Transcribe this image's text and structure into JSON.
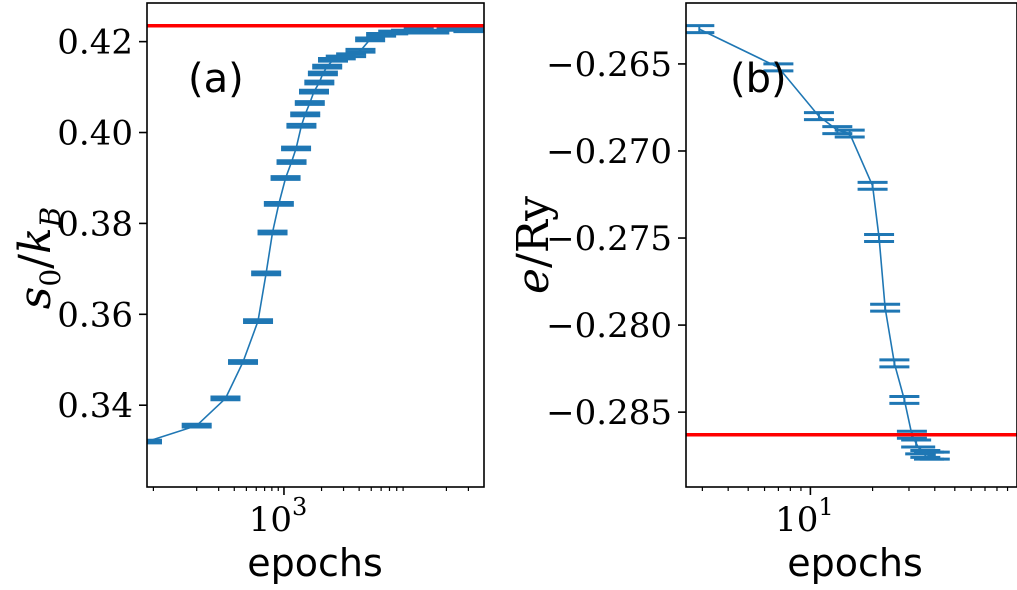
{
  "figure": {
    "series_color": "#1f77b4",
    "reference_color": "#ff0000"
  },
  "chart_data": [
    {
      "type": "line",
      "panel_label": "(a)",
      "title": "",
      "xlabel": "epochs",
      "ylabel_text": "s0/kB",
      "xscale": "log",
      "xlim": [
        80,
        40000
      ],
      "ylim": [
        0.322,
        0.4285
      ],
      "x_ticks": [
        {
          "value": 1000,
          "base": "10",
          "exp": "3"
        }
      ],
      "y_ticks": [
        {
          "value": 0.34,
          "label": "0.34"
        },
        {
          "value": 0.36,
          "label": "0.36"
        },
        {
          "value": 0.38,
          "label": "0.38"
        },
        {
          "value": 0.4,
          "label": "0.40"
        },
        {
          "value": 0.42,
          "label": "0.42"
        }
      ],
      "reference_line": 0.4235,
      "series": [
        {
          "x": [
            80,
            200,
            340,
            470,
            620,
            720,
            810,
            910,
            1030,
            1150,
            1250,
            1380,
            1480,
            1610,
            1740,
            1920,
            2050,
            2220,
            2470,
            2850,
            3450,
            4100,
            4900,
            6000,
            7500,
            9500,
            12000,
            16000,
            22000,
            30000,
            40000
          ],
          "y": [
            0.332,
            0.3355,
            0.3415,
            0.3495,
            0.3585,
            0.369,
            0.378,
            0.3843,
            0.39,
            0.3935,
            0.3965,
            0.4015,
            0.404,
            0.4065,
            0.409,
            0.411,
            0.413,
            0.4145,
            0.416,
            0.4165,
            0.417,
            0.418,
            0.4205,
            0.4215,
            0.422,
            0.4222,
            0.4225,
            0.4222,
            0.4228,
            0.4225,
            0.4228
          ],
          "err": [
            0.0003,
            0.0003,
            0.0003,
            0.0003,
            0.0003,
            0.0003,
            0.0003,
            0.0003,
            0.0003,
            0.0003,
            0.0003,
            0.0003,
            0.0003,
            0.0003,
            0.0003,
            0.0003,
            0.0003,
            0.0003,
            0.0003,
            0.0003,
            0.0003,
            0.0003,
            0.0003,
            0.0003,
            0.0003,
            0.0003,
            0.0003,
            0.0003,
            0.0003,
            0.0003,
            0.0003
          ]
        }
      ]
    },
    {
      "type": "line",
      "panel_label": "(b)",
      "title": "",
      "xlabel": "epochs",
      "ylabel_text": "e/Ry",
      "xscale": "log",
      "xlim": [
        2.5,
        100
      ],
      "ylim": [
        -0.2893,
        -0.2615
      ],
      "x_ticks": [
        {
          "value": 10,
          "base": "10",
          "exp": "1"
        }
      ],
      "y_ticks": [
        {
          "value": -0.265,
          "label": "−0.265"
        },
        {
          "value": -0.27,
          "label": "−0.270"
        },
        {
          "value": -0.275,
          "label": "−0.275"
        },
        {
          "value": -0.28,
          "label": "−0.280"
        },
        {
          "value": -0.285,
          "label": "−0.285"
        }
      ],
      "reference_line": -0.2863,
      "series": [
        {
          "x": [
            2.9,
            7.0,
            11.0,
            13.5,
            15.5,
            20.0,
            21.5,
            23.0,
            25.5,
            28.5,
            31.0,
            32.5,
            34.0,
            36.0,
            37.5,
            40.0
          ],
          "y": [
            -0.263,
            -0.2652,
            -0.268,
            -0.2688,
            -0.269,
            -0.272,
            -0.275,
            -0.279,
            -0.2822,
            -0.2843,
            -0.2863,
            -0.2868,
            -0.2872,
            -0.2874,
            -0.2875,
            -0.2875
          ],
          "err": [
            0.0002,
            0.0002,
            0.0002,
            0.0002,
            0.0002,
            0.0002,
            0.0002,
            0.0002,
            0.0002,
            0.0002,
            0.0002,
            0.0002,
            0.0002,
            0.0002,
            0.0002,
            0.0002
          ]
        }
      ]
    }
  ]
}
